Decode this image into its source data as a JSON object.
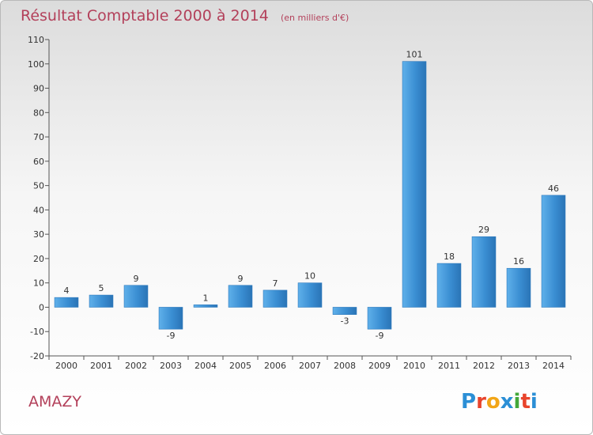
{
  "header": {
    "title": "Résultat Comptable 2000 à 2014",
    "unit": "(en milliers d'€)"
  },
  "place_name": "AMAZY",
  "brand": {
    "letters": [
      "P",
      "r",
      "o",
      "x",
      "i",
      "t",
      "i"
    ],
    "colors": [
      "#2b8fd6",
      "#e8442c",
      "#f2a617",
      "#2b8fd6",
      "#43a83a",
      "#e8442c",
      "#2b8fd6"
    ]
  },
  "chart_data": {
    "type": "bar",
    "title": "Résultat Comptable 2000 à 2014",
    "subtitle": "(en milliers d'€)",
    "categories": [
      "2000",
      "2001",
      "2002",
      "2003",
      "2004",
      "2005",
      "2006",
      "2007",
      "2008",
      "2009",
      "2010",
      "2011",
      "2012",
      "2013",
      "2014"
    ],
    "values": [
      4,
      5,
      9,
      -9,
      1,
      9,
      7,
      10,
      -3,
      -9,
      101,
      18,
      29,
      16,
      46
    ],
    "ylim": [
      -20,
      110
    ],
    "yticks": [
      -20,
      -10,
      0,
      10,
      20,
      30,
      40,
      50,
      60,
      70,
      80,
      90,
      100,
      110
    ],
    "grid": false,
    "bar_color": "#3d92d4"
  }
}
